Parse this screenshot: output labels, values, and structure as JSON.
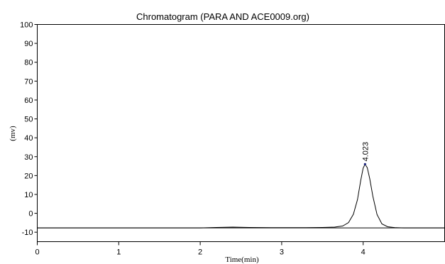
{
  "chart_data": {
    "type": "line",
    "title": "Chromatogram (PARA AND ACE0009.org)",
    "xlabel": "Time(min)",
    "ylabel": "(mv)",
    "xlim": [
      0,
      5
    ],
    "ylim": [
      -15,
      100
    ],
    "xticks": [
      0,
      1,
      2,
      3,
      4
    ],
    "yticks": [
      -10,
      0,
      10,
      20,
      30,
      40,
      50,
      60,
      70,
      80,
      90,
      100
    ],
    "baseline": -7.7,
    "series": [
      {
        "x": [
          0,
          1,
          2,
          2.2,
          2.4,
          2.6,
          3,
          3.3,
          3.5,
          3.65,
          3.75,
          3.82,
          3.88,
          3.93,
          3.97,
          4.0,
          4.023,
          4.05,
          4.08,
          4.12,
          4.17,
          4.23,
          4.3,
          4.4,
          4.5,
          5.0
        ],
        "y": [
          -7.7,
          -7.7,
          -7.7,
          -7.5,
          -7.3,
          -7.5,
          -7.6,
          -7.6,
          -7.5,
          -7.3,
          -6.7,
          -4.9,
          -0.5,
          7.2,
          17.4,
          24.0,
          26.0,
          24.2,
          18.5,
          8.8,
          -0.6,
          -5.6,
          -7.1,
          -7.6,
          -7.7,
          -7.7
        ]
      }
    ],
    "annotations": [
      {
        "text": "4.023",
        "x": 4.023,
        "y": 26.0
      }
    ],
    "grid": false,
    "legend": "none"
  }
}
